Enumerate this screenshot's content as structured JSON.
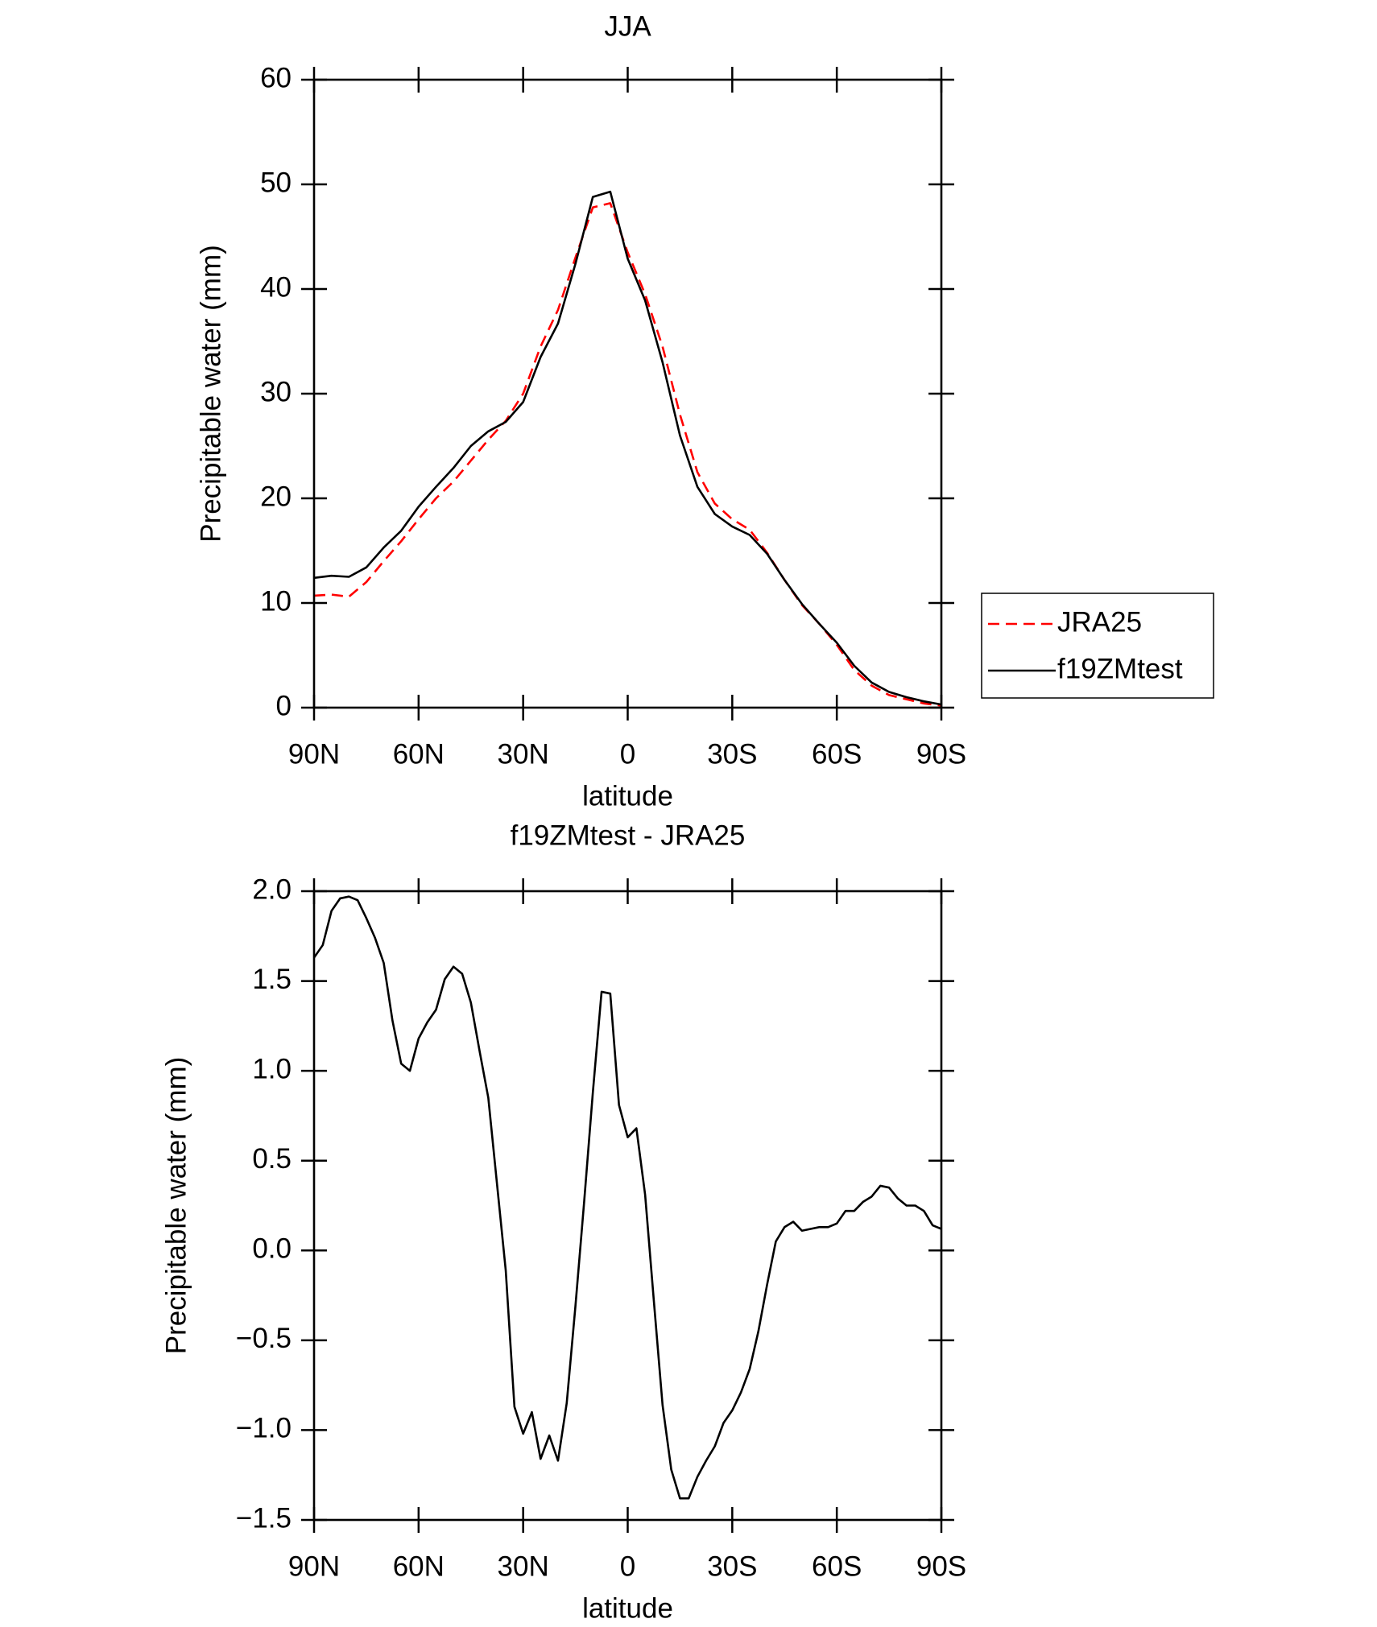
{
  "chart_data": [
    {
      "type": "line",
      "title": "JJA",
      "x_label": "latitude",
      "y_label": "Precipitable water (mm)",
      "x": [
        90,
        85,
        80,
        75,
        70,
        65,
        60,
        55,
        50,
        45,
        40,
        35,
        30,
        25,
        20,
        15,
        10,
        5,
        0,
        -5,
        -10,
        -15,
        -20,
        -25,
        -30,
        -35,
        -40,
        -45,
        -50,
        -55,
        -60,
        -65,
        -70,
        -75,
        -80,
        -85,
        -90
      ],
      "series": [
        {
          "name": "JRA25",
          "color": "#ff0000",
          "dash": true,
          "values": [
            10.7,
            10.8,
            10.6,
            12.0,
            14.0,
            15.9,
            18.0,
            20.0,
            21.6,
            23.6,
            25.6,
            27.4,
            30.0,
            34.5,
            38.0,
            43.0,
            47.8,
            48.2,
            43.5,
            39.5,
            34.5,
            28.0,
            22.5,
            19.5,
            18.0,
            17.0,
            14.8,
            12.2,
            9.8,
            8.0,
            6.0,
            3.6,
            2.1,
            1.2,
            0.8,
            0.4,
            0.2
          ]
        },
        {
          "name": "f19ZMtest",
          "color": "#000000",
          "dash": false,
          "values": [
            12.4,
            12.6,
            12.5,
            13.4,
            15.3,
            16.9,
            19.2,
            21.1,
            22.9,
            25.0,
            26.4,
            27.3,
            29.2,
            33.5,
            36.7,
            42.4,
            48.8,
            49.3,
            42.9,
            38.9,
            33.0,
            26.0,
            21.1,
            18.5,
            17.3,
            16.5,
            14.7,
            12.2,
            9.9,
            8.0,
            6.2,
            4.0,
            2.4,
            1.5,
            1.0,
            0.6,
            0.3
          ]
        }
      ],
      "xlim": [
        90,
        -90
      ],
      "xticks": [
        {
          "value": 90,
          "label": "90N"
        },
        {
          "value": 60,
          "label": "60N"
        },
        {
          "value": 30,
          "label": "30N"
        },
        0,
        {
          "value": -30,
          "label": "30S"
        },
        {
          "value": -60,
          "label": "60S"
        },
        {
          "value": -90,
          "label": "90S"
        }
      ],
      "ylim": [
        0,
        60
      ],
      "yticks": [
        0,
        10,
        20,
        30,
        40,
        50,
        60
      ],
      "legend": "outside-right"
    },
    {
      "type": "line",
      "title": "f19ZMtest - JRA25",
      "x_label": "latitude",
      "y_label": "Precipitable water (mm)",
      "x": [
        90,
        87.5,
        85,
        82.5,
        80,
        77.5,
        75,
        72.5,
        70,
        67.5,
        65,
        62.5,
        60,
        57.5,
        55,
        52.5,
        50,
        47.5,
        45,
        42.5,
        40,
        37.5,
        35,
        32.5,
        30,
        27.5,
        25,
        22.5,
        20,
        17.5,
        15,
        12.5,
        10,
        7.5,
        5,
        2.5,
        0,
        -2.5,
        -5,
        -7.5,
        -10,
        -12.5,
        -15,
        -17.5,
        -20,
        -22.5,
        -25,
        -27.5,
        -30,
        -32.5,
        -35,
        -37.5,
        -40,
        -42.5,
        -45,
        -47.5,
        -50,
        -52.5,
        -55,
        -57.5,
        -60,
        -62.5,
        -65,
        -67.5,
        -70,
        -72.5,
        -75,
        -77.5,
        -80,
        -82.5,
        -85,
        -87.5,
        -90
      ],
      "series": [
        {
          "name": "f19ZMtest - JRA25",
          "color": "#000000",
          "dash": false,
          "values": [
            1.63,
            1.7,
            1.89,
            1.96,
            1.97,
            1.95,
            1.85,
            1.74,
            1.6,
            1.28,
            1.04,
            1.0,
            1.18,
            1.27,
            1.34,
            1.51,
            1.58,
            1.54,
            1.38,
            1.11,
            0.85,
            0.37,
            -0.11,
            -0.87,
            -1.02,
            -0.9,
            -1.16,
            -1.03,
            -1.17,
            -0.85,
            -0.31,
            0.27,
            0.88,
            1.44,
            1.43,
            0.81,
            0.63,
            0.68,
            0.31,
            -0.28,
            -0.86,
            -1.22,
            -1.38,
            -1.38,
            -1.26,
            -1.17,
            -1.09,
            -0.96,
            -0.89,
            -0.79,
            -0.66,
            -0.45,
            -0.19,
            0.05,
            0.13,
            0.16,
            0.11,
            0.12,
            0.13,
            0.13,
            0.15,
            0.22,
            0.22,
            0.27,
            0.3,
            0.36,
            0.35,
            0.29,
            0.25,
            0.25,
            0.22,
            0.14,
            0.12
          ]
        }
      ],
      "xlim": [
        90,
        -90
      ],
      "xticks": [
        {
          "value": 90,
          "label": "90N"
        },
        {
          "value": 60,
          "label": "60N"
        },
        {
          "value": 30,
          "label": "30N"
        },
        0,
        {
          "value": -30,
          "label": "30S"
        },
        {
          "value": -60,
          "label": "60S"
        },
        {
          "value": -90,
          "label": "90S"
        }
      ],
      "ylim": [
        -1.5,
        2.0
      ],
      "yticks": [
        {
          "value": 2.0,
          "label": "2.0"
        },
        {
          "value": 1.5,
          "label": "1.5"
        },
        {
          "value": 1.0,
          "label": "1.0"
        },
        {
          "value": 0.5,
          "label": "0.5"
        },
        {
          "value": 0.0,
          "label": "0.0"
        },
        {
          "value": -0.5,
          "label": "−0.5"
        },
        {
          "value": -1.0,
          "label": "−1.0"
        },
        {
          "value": -1.5,
          "label": "−1.5"
        }
      ]
    }
  ]
}
